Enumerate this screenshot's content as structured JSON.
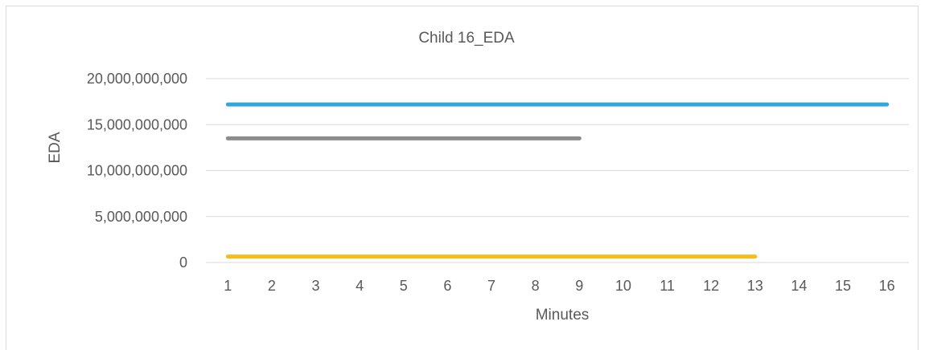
{
  "chart_data": {
    "type": "line",
    "title": "Child 16_EDA",
    "xlabel": "Minutes",
    "ylabel": "EDA",
    "categories": [
      "1",
      "2",
      "3",
      "4",
      "5",
      "6",
      "7",
      "8",
      "9",
      "10",
      "11",
      "12",
      "13",
      "14",
      "15",
      "16"
    ],
    "ylim": [
      0,
      20000000000
    ],
    "yticks": [
      0,
      5000000000,
      10000000000,
      15000000000,
      20000000000
    ],
    "ytick_labels": [
      "0",
      "5,000,000,000",
      "10,000,000,000",
      "15,000,000,000",
      "20,000,000,000"
    ],
    "grid": true,
    "legend": "none",
    "series": [
      {
        "color": "#2fa8dc",
        "values": [
          17200000000,
          17200000000,
          17200000000,
          17200000000,
          17200000000,
          17200000000,
          17200000000,
          17200000000,
          17200000000,
          17200000000,
          17200000000,
          17200000000,
          17200000000,
          17200000000,
          17200000000,
          17200000000
        ]
      },
      {
        "color": "#8c8c8c",
        "values": [
          13500000000,
          13500000000,
          13500000000,
          13500000000,
          13500000000,
          13500000000,
          13500000000,
          13500000000,
          13500000000,
          null,
          null,
          null,
          null,
          null,
          null,
          null
        ]
      },
      {
        "color": "#f7bd1b",
        "values": [
          650000000,
          650000000,
          650000000,
          650000000,
          650000000,
          650000000,
          650000000,
          650000000,
          650000000,
          650000000,
          650000000,
          650000000,
          650000000,
          null,
          null,
          null
        ]
      }
    ]
  }
}
